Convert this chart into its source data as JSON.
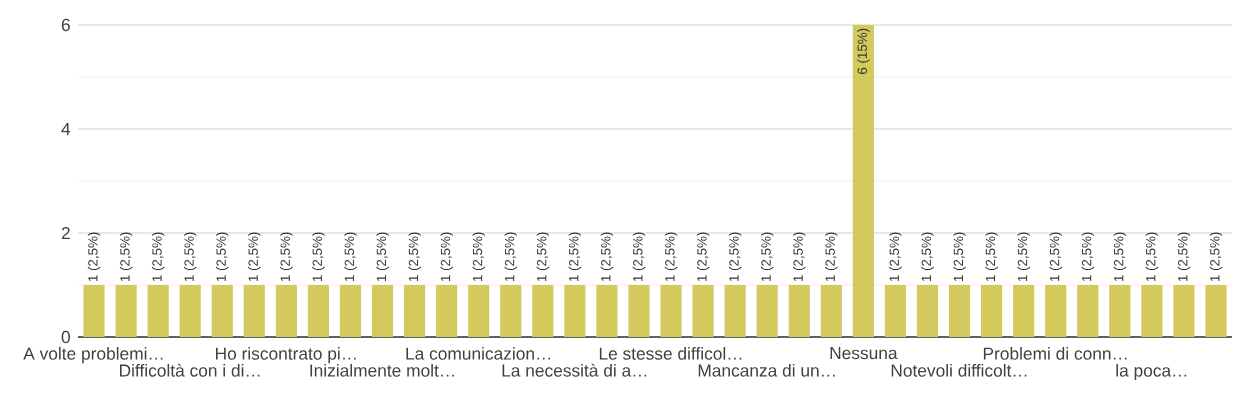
{
  "chart_data": {
    "type": "bar",
    "categories": [
      "A volte problemi…",
      null,
      null,
      "Difficoltà con i di…",
      null,
      null,
      "Ho riscontrato pi…",
      null,
      null,
      "Inizialmente molt…",
      null,
      null,
      "La comunicazion…",
      null,
      null,
      "La necessità di a…",
      null,
      null,
      "Le stesse difficol…",
      null,
      null,
      "Mancanza di un…",
      null,
      null,
      "Nessuna",
      null,
      null,
      "Notevoli difficolt…",
      null,
      null,
      "Problemi di conn…",
      null,
      null,
      "la poca…",
      null,
      null
    ],
    "values": [
      1,
      1,
      1,
      1,
      1,
      1,
      1,
      1,
      1,
      1,
      1,
      1,
      1,
      1,
      1,
      1,
      1,
      1,
      1,
      1,
      1,
      1,
      1,
      1,
      6,
      1,
      1,
      1,
      1,
      1,
      1,
      1,
      1,
      1,
      1,
      1
    ],
    "value_labels": [
      "1 (2,5%)",
      "1 (2,5%)",
      "1 (2,5%)",
      "1 (2,5%)",
      "1 (2,5%)",
      "1 (2,5%)",
      "1 (2,5%)",
      "1 (2,5%)",
      "1 (2,5%)",
      "1 (2,5%)",
      "1 (2,5%)",
      "1 (2,5%)",
      "1 (2,5%)",
      "1 (2,5%)",
      "1 (2,5%)",
      "1 (2,5%)",
      "1 (2,5%)",
      "1 (2,5%)",
      "1 (2,5%)",
      "1 (2,5%)",
      "1 (2,5%)",
      "1 (2,5%)",
      "1 (2,5%)",
      "1 (2,5%)",
      "6 (15%)",
      "1 (2,5%)",
      "1 (2,5%)",
      "1 (2,5%)",
      "1 (2,5%)",
      "1 (2,5%)",
      "1 (2,5%)",
      "1 (2,5%)",
      "1 (2,5%)",
      "1 (2,5%)",
      "1 (2,5%)",
      "1 (2,5%)"
    ],
    "color": "#d4c95c",
    "ylim": [
      0,
      6
    ],
    "yticks": [
      0,
      2,
      4,
      6
    ],
    "grid": "y"
  }
}
